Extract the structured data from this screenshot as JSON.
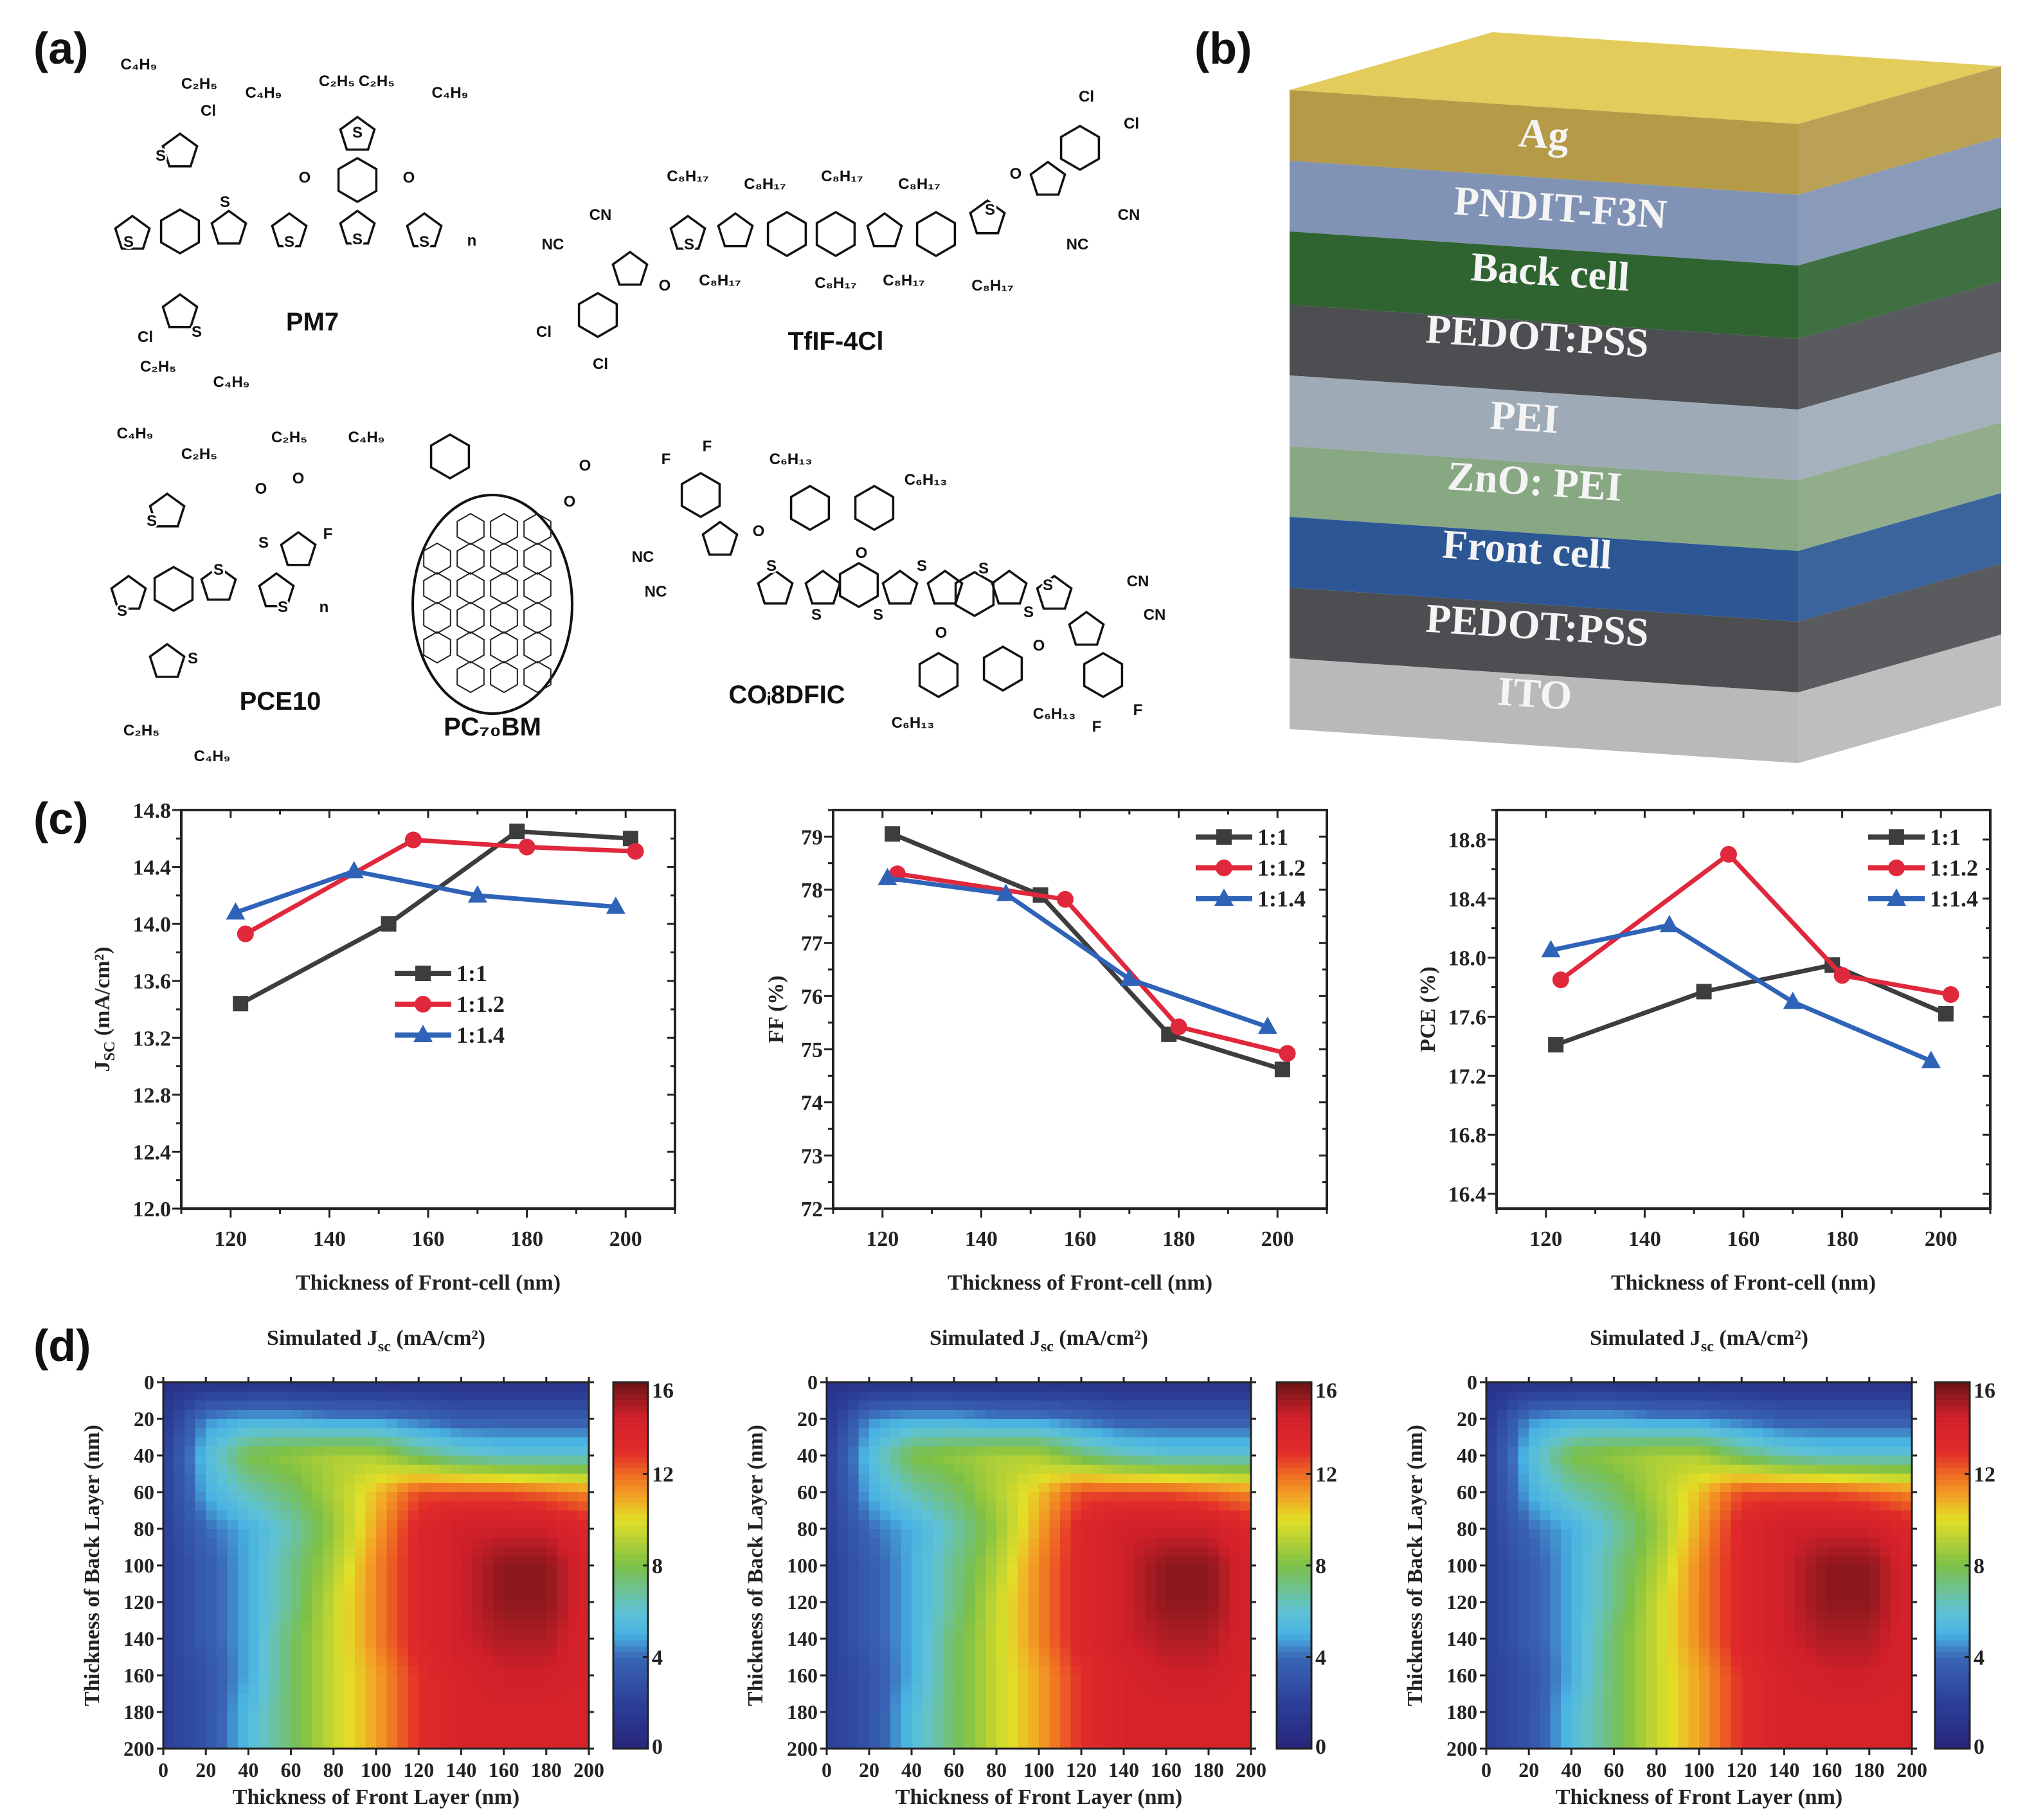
{
  "panel_labels": {
    "a": "(a)",
    "b": "(b)",
    "c": "(c)",
    "d": "(d)"
  },
  "panel_a": {
    "molecules": [
      {
        "name": "PM7",
        "atoms": [
          "C₄H₉",
          "C₂H₅",
          "Cl",
          "S",
          "C₄H₉",
          "C₂H₅",
          "C₂H₅",
          "C₄H₉",
          "S",
          "O",
          "O",
          "S",
          "S",
          "S",
          "S",
          "S",
          "n",
          "S",
          "Cl",
          "C₂H₅",
          "C₄H₉"
        ]
      },
      {
        "name": "TfIF-4Cl",
        "atoms": [
          "Cl",
          "Cl",
          "O",
          "CN",
          "NC",
          "C₈H₁₇",
          "C₈H₁₇",
          "C₈H₁₇",
          "C₈H₁₇",
          "S",
          "S",
          "C₈H₁₇",
          "C₈H₁₇",
          "C₈H₁₇",
          "C₈H₁₇",
          "CN",
          "NC",
          "O",
          "Cl",
          "Cl"
        ]
      },
      {
        "name": "PCE10",
        "atoms": [
          "C₄H₉",
          "C₂H₅",
          "C₂H₅",
          "C₄H₉",
          "S",
          "O",
          "O",
          "S",
          "S",
          "F",
          "S",
          "S",
          "n",
          "S",
          "C₂H₅",
          "C₄H₉"
        ]
      },
      {
        "name": "PC₇₀BM",
        "atoms": [
          "O",
          "O"
        ]
      },
      {
        "name": "COᵢ8DFIC",
        "atoms": [
          "F",
          "F",
          "C₆H₁₃",
          "C₆H₁₃",
          "O",
          "NC",
          "NC",
          "S",
          "O",
          "S",
          "S",
          "S",
          "S",
          "S",
          "O",
          "S",
          "CN",
          "CN",
          "O",
          "C₆H₁₃",
          "C₆H₁₃",
          "F",
          "F"
        ]
      }
    ]
  },
  "panel_b": {
    "layers": [
      {
        "label": "Ag",
        "color": "#b59a47",
        "top": "#e3cb5c"
      },
      {
        "label": "PNDIT-F3N",
        "color": "#8193b4"
      },
      {
        "label": "Back cell",
        "color": "#2f6431"
      },
      {
        "label": "PEDOT:PSS",
        "color": "#4d4e52"
      },
      {
        "label": "PEI",
        "color": "#9eabb7"
      },
      {
        "label": "ZnO: PEI",
        "color": "#88a783"
      },
      {
        "label": "Front cell",
        "color": "#2c5794"
      },
      {
        "label": "PEDOT:PSS",
        "color": "#4d4e52"
      },
      {
        "label": "ITO",
        "color": "#b9b9b9"
      }
    ]
  },
  "chart_data": [
    {
      "type": "line",
      "xlabel": "Thickness of Front-cell (nm)",
      "ylabel_main": "J",
      "ylabel_sub": "SC",
      "ylabel_unit": " (mA/cm²)",
      "xlim": [
        110,
        210
      ],
      "ylim": [
        12.0,
        14.8
      ],
      "xticks": [
        "120",
        "140",
        "160",
        "180",
        "200"
      ],
      "yticks": [
        "12.0",
        "12.4",
        "12.8",
        "13.2",
        "13.6",
        "14.0",
        "14.4",
        "14.8"
      ],
      "grid": false,
      "legend": "center",
      "series": [
        {
          "name": "1:1",
          "color": "#3d3d3f",
          "marker": "square",
          "x": [
            122,
            152,
            178,
            201
          ],
          "y": [
            13.44,
            14.0,
            14.65,
            14.6
          ]
        },
        {
          "name": "1:1.2",
          "color": "#e0283c",
          "marker": "circle",
          "x": [
            123,
            157,
            180,
            202
          ],
          "y": [
            13.93,
            14.59,
            14.54,
            14.51
          ]
        },
        {
          "name": "1:1.4",
          "color": "#2f63b8",
          "marker": "triangle",
          "x": [
            121,
            145,
            170,
            198
          ],
          "y": [
            14.08,
            14.37,
            14.2,
            14.12
          ]
        }
      ]
    },
    {
      "type": "line",
      "xlabel": "Thickness of Front-cell (nm)",
      "ylabel_main": "FF (%)",
      "ylabel_sub": "",
      "ylabel_unit": "",
      "xlim": [
        110,
        210
      ],
      "ylim": [
        72,
        79.5
      ],
      "xticks": [
        "120",
        "140",
        "160",
        "180",
        "200"
      ],
      "yticks": [
        "72",
        "73",
        "74",
        "75",
        "76",
        "77",
        "78",
        "79"
      ],
      "grid": false,
      "legend": "top-right",
      "series": [
        {
          "name": "1:1",
          "color": "#3d3d3f",
          "marker": "square",
          "x": [
            122,
            152,
            178,
            201
          ],
          "y": [
            79.05,
            77.9,
            75.28,
            74.62
          ]
        },
        {
          "name": "1:1.2",
          "color": "#e0283c",
          "marker": "circle",
          "x": [
            123,
            157,
            180,
            202
          ],
          "y": [
            78.3,
            77.82,
            75.42,
            74.92
          ]
        },
        {
          "name": "1:1.4",
          "color": "#2f63b8",
          "marker": "triangle",
          "x": [
            121,
            145,
            170,
            198
          ],
          "y": [
            78.22,
            77.92,
            76.32,
            75.42
          ]
        }
      ]
    },
    {
      "type": "line",
      "xlabel": "Thickness of Front-cell (nm)",
      "ylabel_main": "PCE (%)",
      "ylabel_sub": "",
      "ylabel_unit": "",
      "xlim": [
        110,
        210
      ],
      "ylim": [
        16.3,
        19.0
      ],
      "xticks": [
        "120",
        "140",
        "160",
        "180",
        "200"
      ],
      "yticks": [
        "16.4",
        "16.8",
        "17.2",
        "17.6",
        "18.0",
        "18.4",
        "18.8"
      ],
      "grid": false,
      "legend": "top-right",
      "series": [
        {
          "name": "1:1",
          "color": "#3d3d3f",
          "marker": "square",
          "x": [
            122,
            152,
            178,
            201
          ],
          "y": [
            17.41,
            17.77,
            17.95,
            17.62
          ]
        },
        {
          "name": "1:1.2",
          "color": "#e0283c",
          "marker": "circle",
          "x": [
            123,
            157,
            180,
            202
          ],
          "y": [
            17.85,
            18.7,
            17.88,
            17.75
          ]
        },
        {
          "name": "1:1.4",
          "color": "#2f63b8",
          "marker": "triangle",
          "x": [
            121,
            145,
            170,
            198
          ],
          "y": [
            18.05,
            18.22,
            17.7,
            17.3
          ]
        }
      ]
    },
    {
      "type": "heatmap",
      "title_main": "Simulated J",
      "title_sub": "sc",
      "title_unit": " (mA/cm²)",
      "xlabel": "Thickness of Front Layer (nm)",
      "ylabel": "Thickness of Back Layer (nm)",
      "xticks": [
        "0",
        "20",
        "40",
        "60",
        "80",
        "100",
        "120",
        "140",
        "160",
        "180",
        "200"
      ],
      "yticks": [
        "0",
        "20",
        "40",
        "60",
        "80",
        "100",
        "120",
        "140",
        "160",
        "180",
        "200"
      ],
      "colorbar_ticks": [
        "0",
        "4",
        "8",
        "12",
        "16"
      ],
      "zlim": [
        0,
        16
      ],
      "x": [
        0,
        20,
        40,
        60,
        80,
        100,
        120,
        140,
        160,
        180,
        200
      ],
      "y": [
        0,
        20,
        40,
        60,
        80,
        100,
        120,
        140,
        160,
        180,
        200
      ],
      "z": [
        [
          1,
          1,
          1,
          1,
          1,
          1,
          1,
          1,
          1,
          1,
          1
        ],
        [
          1.5,
          4.5,
          5,
          5,
          4.5,
          4.5,
          4,
          3.5,
          3.5,
          3.5,
          3.5
        ],
        [
          2,
          5.5,
          8,
          8.5,
          9,
          9,
          7.5,
          6.5,
          6,
          6,
          6
        ],
        [
          2,
          5,
          6.5,
          7.5,
          9,
          10.5,
          12.5,
          12.5,
          12.5,
          12,
          11.5
        ],
        [
          2,
          4,
          5,
          6.5,
          8.5,
          11,
          13.5,
          14.5,
          14.5,
          14.5,
          13.5
        ],
        [
          2,
          3.5,
          5,
          7,
          9,
          11.5,
          13.5,
          14.5,
          15.5,
          15.5,
          14
        ],
        [
          2,
          3.5,
          5,
          7,
          9.5,
          11.5,
          13.5,
          14.5,
          15.5,
          15.5,
          14
        ],
        [
          2,
          3.5,
          5,
          7.5,
          9.5,
          11.5,
          13.5,
          14.5,
          15,
          15,
          14
        ],
        [
          2,
          3,
          5,
          7.5,
          9.5,
          11,
          13,
          14,
          14.5,
          14.5,
          14
        ],
        [
          2,
          3,
          5.5,
          7.5,
          9.5,
          11,
          13,
          14,
          14,
          14,
          14
        ],
        [
          2,
          3,
          5.5,
          7.5,
          9.5,
          11,
          13,
          14,
          14,
          14,
          14
        ]
      ]
    },
    {
      "type": "heatmap",
      "title_main": "Simulated J",
      "title_sub": "sc",
      "title_unit": " (mA/cm²)",
      "xlabel": "Thickness of Front Layer (nm)",
      "ylabel": "Thickness of Back Layer (nm)",
      "xticks": [
        "0",
        "20",
        "40",
        "60",
        "80",
        "100",
        "120",
        "140",
        "160",
        "180",
        "200"
      ],
      "yticks": [
        "0",
        "20",
        "40",
        "60",
        "80",
        "100",
        "120",
        "140",
        "160",
        "180",
        "200"
      ],
      "colorbar_ticks": [
        "0",
        "4",
        "8",
        "12",
        "16"
      ],
      "zlim": [
        0,
        16
      ],
      "x": [
        0,
        20,
        40,
        60,
        80,
        100,
        120,
        140,
        160,
        180,
        200
      ],
      "y": [
        0,
        20,
        40,
        60,
        80,
        100,
        120,
        140,
        160,
        180,
        200
      ],
      "z": [
        [
          1,
          1,
          1,
          1,
          1,
          1,
          1,
          1,
          1,
          1,
          1
        ],
        [
          1.5,
          4.5,
          5,
          5,
          4.5,
          4.5,
          4,
          3.5,
          3.5,
          3.5,
          3.5
        ],
        [
          2,
          5.5,
          8,
          8.5,
          9,
          9,
          7.5,
          6.5,
          6,
          6,
          6
        ],
        [
          2,
          5,
          6.5,
          7.5,
          9,
          10.5,
          12.5,
          12.5,
          12.5,
          12,
          11.5
        ],
        [
          2,
          4,
          5,
          6.5,
          8.5,
          11,
          13.5,
          14.5,
          14.5,
          14.5,
          13.5
        ],
        [
          2,
          3.5,
          5,
          7,
          9,
          11.5,
          13.5,
          14.5,
          15.5,
          15.5,
          14
        ],
        [
          2,
          3.5,
          5,
          7,
          9.5,
          11.5,
          13.5,
          14.5,
          15.5,
          15.5,
          14
        ],
        [
          2,
          3.5,
          5,
          7.5,
          9.5,
          11.5,
          13.5,
          14.5,
          15,
          15,
          14
        ],
        [
          2,
          3,
          5,
          7.5,
          9.5,
          11,
          13,
          14,
          14.5,
          14.5,
          14
        ],
        [
          2,
          3,
          5.5,
          7.5,
          9.5,
          11,
          13,
          14,
          14,
          14,
          14
        ],
        [
          2,
          3,
          5.5,
          7.5,
          9.5,
          11,
          13,
          14,
          14,
          14,
          14
        ]
      ]
    },
    {
      "type": "heatmap",
      "title_main": "Simulated J",
      "title_sub": "sc",
      "title_unit": " (mA/cm²)",
      "xlabel": "Thickness of Front Layer (nm)",
      "ylabel": "Thickness of Back Layer (nm)",
      "xticks": [
        "0",
        "20",
        "40",
        "60",
        "80",
        "100",
        "120",
        "140",
        "160",
        "180",
        "200"
      ],
      "yticks": [
        "0",
        "20",
        "40",
        "60",
        "80",
        "100",
        "120",
        "140",
        "160",
        "180",
        "200"
      ],
      "colorbar_ticks": [
        "0",
        "4",
        "8",
        "12",
        "16"
      ],
      "zlim": [
        0,
        16
      ],
      "x": [
        0,
        20,
        40,
        60,
        80,
        100,
        120,
        140,
        160,
        180,
        200
      ],
      "y": [
        0,
        20,
        40,
        60,
        80,
        100,
        120,
        140,
        160,
        180,
        200
      ],
      "z": [
        [
          1,
          1,
          1,
          1,
          1,
          1,
          1,
          1,
          1,
          1,
          1
        ],
        [
          1.5,
          4.5,
          5,
          5,
          4.5,
          4.5,
          4,
          3.5,
          3.5,
          3.5,
          3.5
        ],
        [
          2,
          5.5,
          8,
          8.5,
          9,
          9,
          7.5,
          6.5,
          6,
          6,
          6
        ],
        [
          2,
          5,
          6.5,
          7.5,
          9,
          10.5,
          12.5,
          12.5,
          12.5,
          12,
          11.5
        ],
        [
          2,
          4,
          5,
          6.5,
          8.5,
          11,
          13.5,
          14.5,
          14.5,
          14.5,
          13.5
        ],
        [
          2,
          3.5,
          5,
          7,
          9,
          11.5,
          13.5,
          14.5,
          15.5,
          15.5,
          14
        ],
        [
          2,
          3.5,
          5,
          7,
          9.5,
          11.5,
          13.5,
          14.5,
          15.5,
          15.5,
          14
        ],
        [
          2,
          3.5,
          5,
          7.5,
          9.5,
          11.5,
          13.5,
          14.5,
          15,
          15,
          14
        ],
        [
          2,
          3,
          5,
          7.5,
          9.5,
          11,
          13,
          14,
          14.5,
          14.5,
          14
        ],
        [
          2,
          3,
          5.5,
          7.5,
          9.5,
          11,
          13,
          14,
          14,
          14,
          14
        ],
        [
          2,
          3,
          5.5,
          7.5,
          9.5,
          11,
          13,
          14,
          14,
          14,
          14
        ]
      ]
    }
  ],
  "colormap": [
    [
      0,
      "#27257a"
    ],
    [
      2,
      "#2c3f98"
    ],
    [
      4,
      "#3a66b6"
    ],
    [
      5,
      "#48b2e2"
    ],
    [
      6,
      "#5fc2d6"
    ],
    [
      8,
      "#7cc047"
    ],
    [
      10,
      "#e2df27"
    ],
    [
      11,
      "#f2a425"
    ],
    [
      12,
      "#ee6a22"
    ],
    [
      13,
      "#e12a2a"
    ],
    [
      14.5,
      "#d1202a"
    ],
    [
      16,
      "#6a1416"
    ]
  ]
}
